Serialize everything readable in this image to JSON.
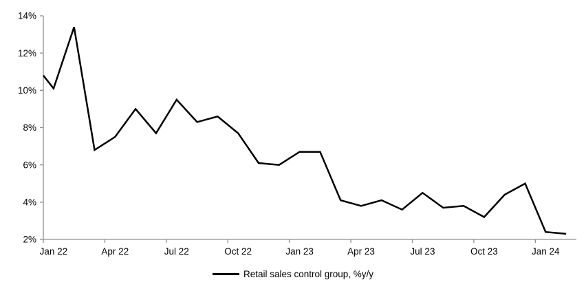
{
  "figure": {
    "legend_label": "Retail sales control group, %y/y"
  },
  "chart_data": {
    "type": "line",
    "title": "",
    "categories": [
      "Jan 22",
      "Feb 22",
      "Mar 22",
      "Apr 22",
      "May 22",
      "Jun 22",
      "Jul 22",
      "Aug 22",
      "Sep 22",
      "Oct 22",
      "Nov 22",
      "Dec 22",
      "Jan 23",
      "Feb 23",
      "Mar 23",
      "Apr 23",
      "May 23",
      "Jun 23",
      "Jul 23",
      "Aug 23",
      "Sep 23",
      "Oct 23",
      "Nov 23",
      "Dec 23",
      "Jan 24",
      "Feb 24"
    ],
    "series": [
      {
        "name": "Retail sales control group, %y/y",
        "values": [
          10.1,
          13.4,
          6.8,
          7.5,
          9.0,
          7.7,
          9.5,
          8.3,
          8.6,
          7.7,
          6.1,
          6.0,
          6.7,
          6.7,
          4.1,
          3.8,
          4.1,
          3.6,
          4.5,
          3.7,
          3.8,
          3.2,
          4.4,
          5.0,
          2.4,
          2.3
        ]
      }
    ],
    "left_edge_value": 10.8,
    "x_axis": {
      "tick_labels": [
        "Jan 22",
        "Apr 22",
        "Jul 22",
        "Oct 22",
        "Jan 23",
        "Apr 23",
        "Jul 23",
        "Oct 23",
        "Jan 24"
      ],
      "tick_interval_months": 3,
      "label_alignment": "centered on labeled month slot"
    },
    "y_axis": {
      "tick_labels": [
        "2%",
        "4%",
        "6%",
        "8%",
        "10%",
        "12%",
        "14%"
      ],
      "min": 2,
      "max": 14,
      "step": 2,
      "unit": "%"
    },
    "grid": false,
    "legend_position": "bottom-center",
    "line_width": 2.5,
    "colors": {
      "line": "#000000",
      "axis": "#8f8f8f",
      "text": "#000000",
      "background": "#ffffff"
    }
  }
}
